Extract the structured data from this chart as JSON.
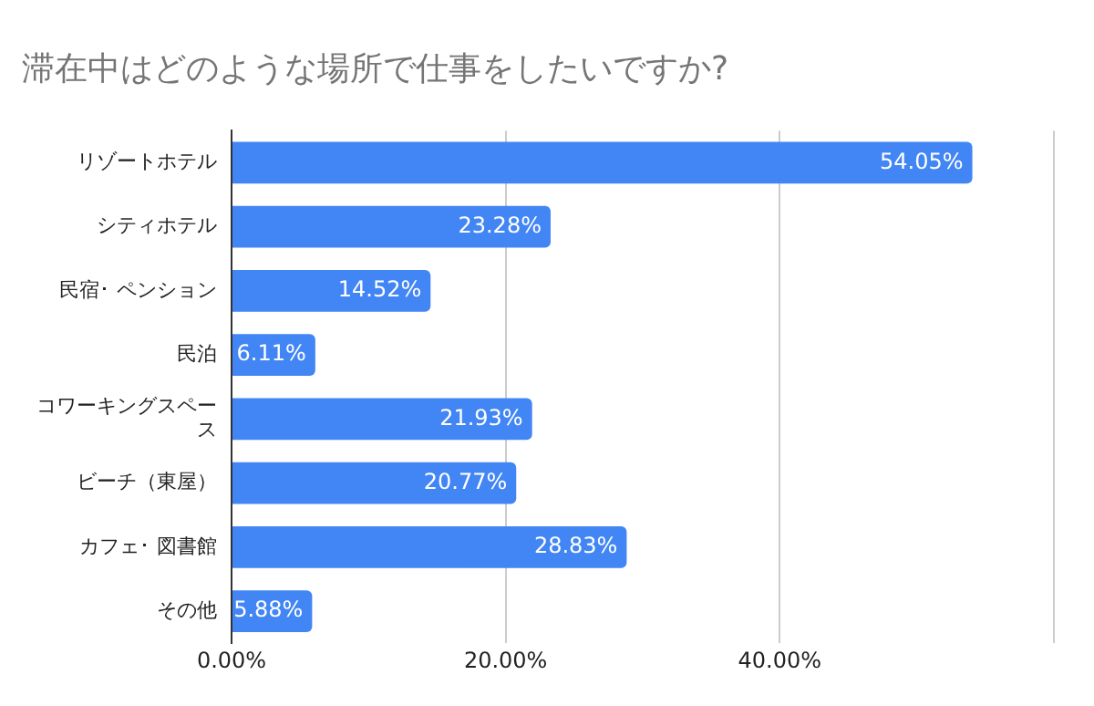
{
  "chart_data": {
    "type": "bar",
    "orientation": "horizontal",
    "title": "滞在中はどのような場所で仕事をしたいですか?",
    "categories": [
      "リゾートホテル",
      "シティホテル",
      "民宿･ ペンション",
      "民泊",
      "コワーキングスペース",
      "ビーチ（東屋）",
      "カフェ･ 図書館",
      "その他"
    ],
    "values": [
      54.05,
      23.28,
      14.52,
      6.11,
      21.93,
      20.77,
      28.83,
      5.88
    ],
    "value_labels": [
      "54.05%",
      "23.28%",
      "14.52%",
      "6.11%",
      "21.93%",
      "20.77%",
      "28.83%",
      "5.88%"
    ],
    "color": "#4285f4",
    "xlim": [
      0,
      60
    ],
    "xticks": [
      {
        "value": 0,
        "label": "0.00%"
      },
      {
        "value": 20,
        "label": "20.00%"
      },
      {
        "value": 40,
        "label": "40.00%"
      },
      {
        "value": 60,
        "label": null
      }
    ],
    "grid": "x",
    "legend": false
  }
}
